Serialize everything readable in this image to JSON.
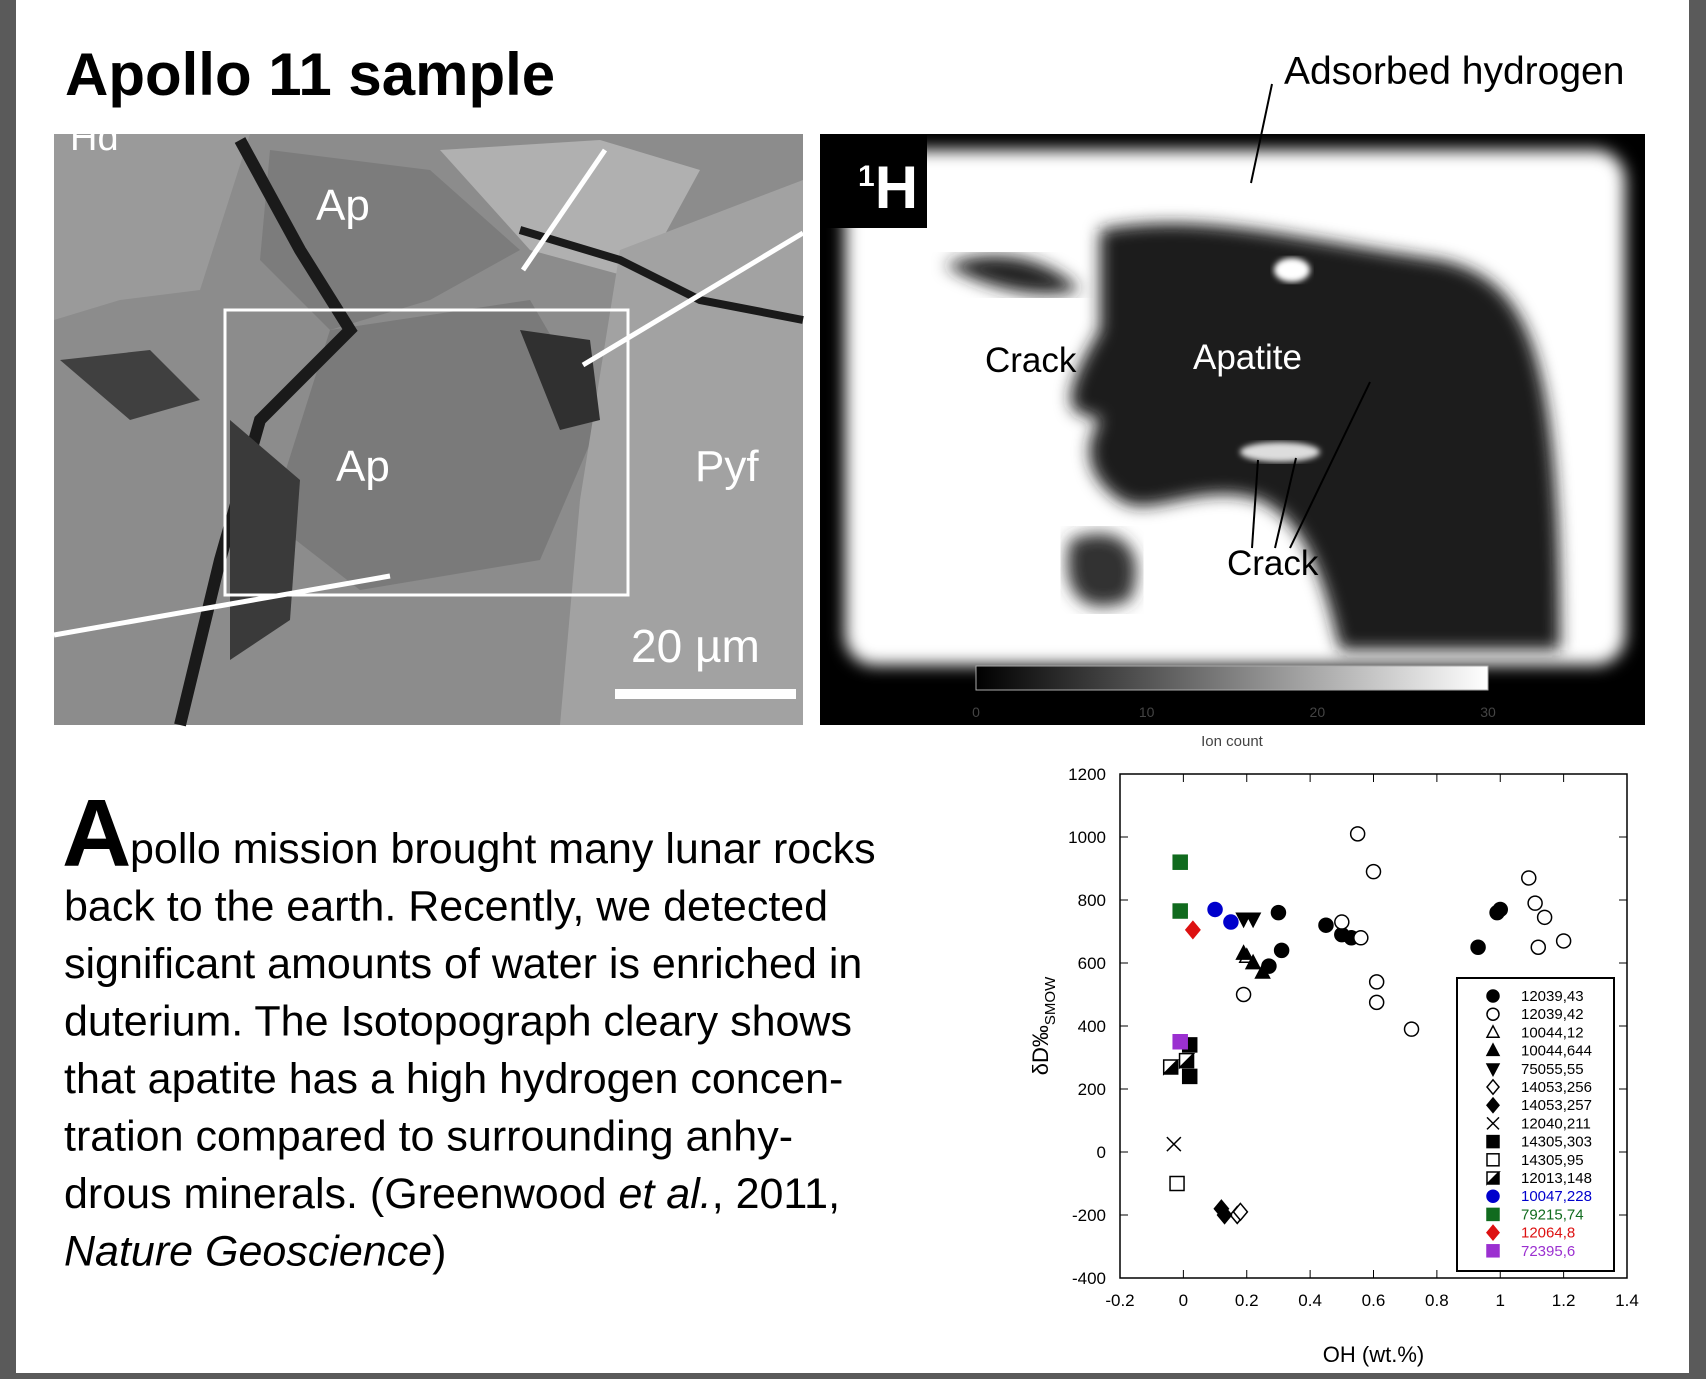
{
  "title": "Apollo 11 sample",
  "left_image": {
    "labels": [
      "Hd",
      "Ap",
      "Ap",
      "Pyf"
    ],
    "scale_bar": "20 µm"
  },
  "right_image": {
    "badge_superscript": "1",
    "badge": "H",
    "callout": "Adsorbed hydrogen",
    "labels": [
      "Crack",
      "Apatite",
      "Crack"
    ],
    "colorbar": {
      "ticks": [
        "0",
        "10",
        "20",
        "30"
      ],
      "label": "Ion count"
    }
  },
  "paragraph": {
    "drop_cap": "A",
    "lines": [
      [
        {
          "text": "pollo mission brought many lunar rocks",
          "italic": false
        }
      ],
      [
        {
          "text": "back to the earth. Recently, we detected",
          "italic": false
        }
      ],
      [
        {
          "text": "significant amounts of water is enriched in",
          "italic": false
        }
      ],
      [
        {
          "text": "duterium. The Isotopograph cleary shows",
          "italic": false
        }
      ],
      [
        {
          "text": "that apatite has a high hydrogen concen-",
          "italic": false
        }
      ],
      [
        {
          "text": "tration compared to surrounding anhy-",
          "italic": false
        }
      ],
      [
        {
          "text": "drous minerals. (Greenwood ",
          "italic": false
        },
        {
          "text": "et al.",
          "italic": true
        },
        {
          "text": ", 2011,",
          "italic": false
        }
      ],
      [
        {
          "text": "Nature Geoscience",
          "italic": true
        },
        {
          "text": ")",
          "italic": false
        }
      ]
    ]
  },
  "chart_data": {
    "type": "scatter",
    "x_label": "OH (wt.%)",
    "y_label": "δD‰",
    "y_label_subscript": "SMOW",
    "xlim": [
      -0.2,
      1.4
    ],
    "xticks": [
      -0.2,
      0,
      0.2,
      0.4,
      0.6,
      0.8,
      1,
      1.2,
      1.4
    ],
    "ylim": [
      -400,
      1200
    ],
    "yticks": [
      -400,
      -200,
      0,
      200,
      400,
      600,
      800,
      1000,
      1200
    ],
    "series": [
      {
        "name": "12039,43",
        "color": "#000000",
        "marker": "circle",
        "fill": "solid",
        "x": [
          0.3,
          0.27,
          0.31,
          0.45,
          0.5,
          0.53,
          0.93,
          1.0,
          0.99
        ],
        "values": [
          760,
          590,
          640,
          720,
          690,
          680,
          650,
          770,
          760
        ]
      },
      {
        "name": "12039,42",
        "color": "#000000",
        "marker": "circle",
        "fill": "none",
        "x": [
          0.55,
          0.6,
          0.5,
          0.56,
          0.61,
          0.61,
          0.72,
          0.19,
          1.09,
          1.11,
          1.14,
          1.12,
          1.2
        ],
        "values": [
          1010,
          890,
          730,
          680,
          540,
          475,
          390,
          500,
          870,
          790,
          745,
          650,
          670
        ]
      },
      {
        "name": "10044,12",
        "color": "#000000",
        "marker": "triangle",
        "fill": "none",
        "x": [
          0.2
        ],
        "values": [
          620
        ]
      },
      {
        "name": "10044,644",
        "color": "#000000",
        "marker": "triangle",
        "fill": "solid",
        "x": [
          0.19,
          0.22,
          0.25
        ],
        "values": [
          630,
          600,
          570
        ]
      },
      {
        "name": "75055,55",
        "color": "#000000",
        "marker": "triangle-down",
        "fill": "solid",
        "x": [
          0.19,
          0.22
        ],
        "values": [
          740,
          740
        ]
      },
      {
        "name": "14053,256",
        "color": "#000000",
        "marker": "diamond",
        "fill": "none",
        "x": [
          0.17,
          0.18
        ],
        "values": [
          -200,
          -190
        ]
      },
      {
        "name": "14053,257",
        "color": "#000000",
        "marker": "diamond",
        "fill": "solid",
        "x": [
          0.13,
          0.12
        ],
        "values": [
          -200,
          -180
        ]
      },
      {
        "name": "12040,211",
        "color": "#000000",
        "marker": "x",
        "fill": "none",
        "x": [
          -0.03
        ],
        "values": [
          25
        ]
      },
      {
        "name": "14305,303",
        "color": "#000000",
        "marker": "square",
        "fill": "solid",
        "x": [
          0.02,
          0.02
        ],
        "values": [
          340,
          240
        ]
      },
      {
        "name": "14305,95",
        "color": "#000000",
        "marker": "square",
        "fill": "none",
        "x": [
          -0.02
        ],
        "values": [
          -100
        ]
      },
      {
        "name": "12013,148",
        "color": "#000000",
        "marker": "square",
        "fill": "half",
        "x": [
          -0.04,
          0.01
        ],
        "values": [
          270,
          290
        ]
      },
      {
        "name": "10047,228",
        "color": "#0000cc",
        "marker": "circle",
        "fill": "solid",
        "x": [
          0.1,
          0.15
        ],
        "values": [
          770,
          730
        ]
      },
      {
        "name": "79215,74",
        "color": "#106b1e",
        "marker": "square",
        "fill": "solid",
        "x": [
          -0.01,
          -0.01
        ],
        "values": [
          920,
          765
        ]
      },
      {
        "name": "12064,8",
        "color": "#dd1111",
        "marker": "diamond",
        "fill": "solid",
        "x": [
          0.03
        ],
        "values": [
          705
        ]
      },
      {
        "name": "72395,6",
        "color": "#9b30d0",
        "marker": "square",
        "fill": "solid",
        "x": [
          -0.01
        ],
        "values": [
          350
        ]
      }
    ]
  }
}
